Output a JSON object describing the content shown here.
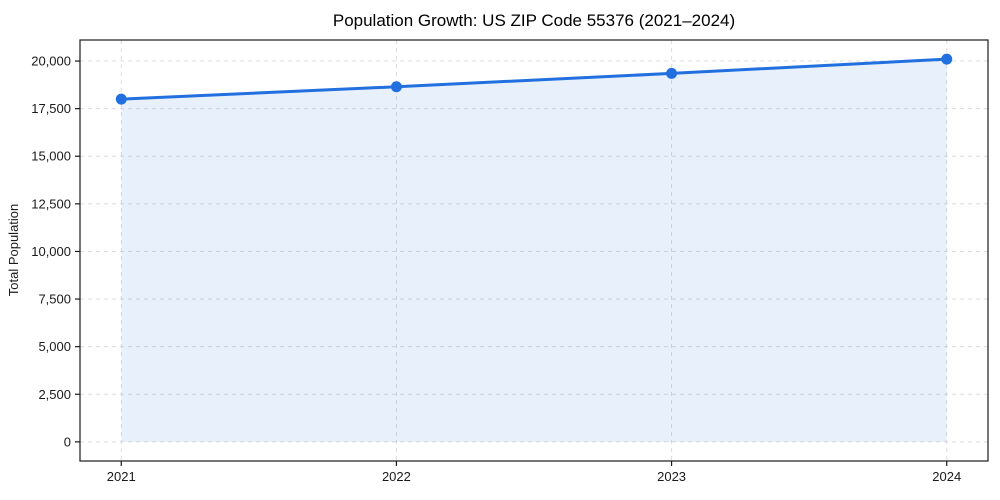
{
  "chart_data": {
    "type": "area",
    "title": "Population Growth: US ZIP Code 55376 (2021–2024)",
    "xlabel": "",
    "ylabel": "Total Population",
    "x": [
      2021,
      2022,
      2023,
      2024
    ],
    "series": [
      {
        "name": "Total Population",
        "values": [
          18000,
          18650,
          19350,
          20100
        ]
      }
    ],
    "xticks": {
      "values": [
        2021,
        2022,
        2023,
        2024
      ],
      "labels": [
        "2021",
        "2022",
        "2023",
        "2024"
      ]
    },
    "yticks": {
      "values": [
        0,
        2500,
        5000,
        7500,
        10000,
        12500,
        15000,
        17500,
        20000
      ],
      "labels": [
        "0",
        "2,500",
        "5,000",
        "7,500",
        "10,000",
        "12,500",
        "15,000",
        "17,500",
        "20,000"
      ]
    },
    "xlim": [
      2020.85,
      2024.15
    ],
    "ylim": [
      -1005,
      21105
    ],
    "grid": true,
    "grid_style": "dashed",
    "legend": "none",
    "fill_to": 0,
    "marker": "circle",
    "colors": {
      "line": "#2270e0",
      "fill": "#2270e0",
      "fill_opacity": 0.1,
      "grid": "#dcdcdc",
      "spine": "#1a1a1a",
      "tick": "#1a1a1a",
      "title": "#000000"
    }
  }
}
